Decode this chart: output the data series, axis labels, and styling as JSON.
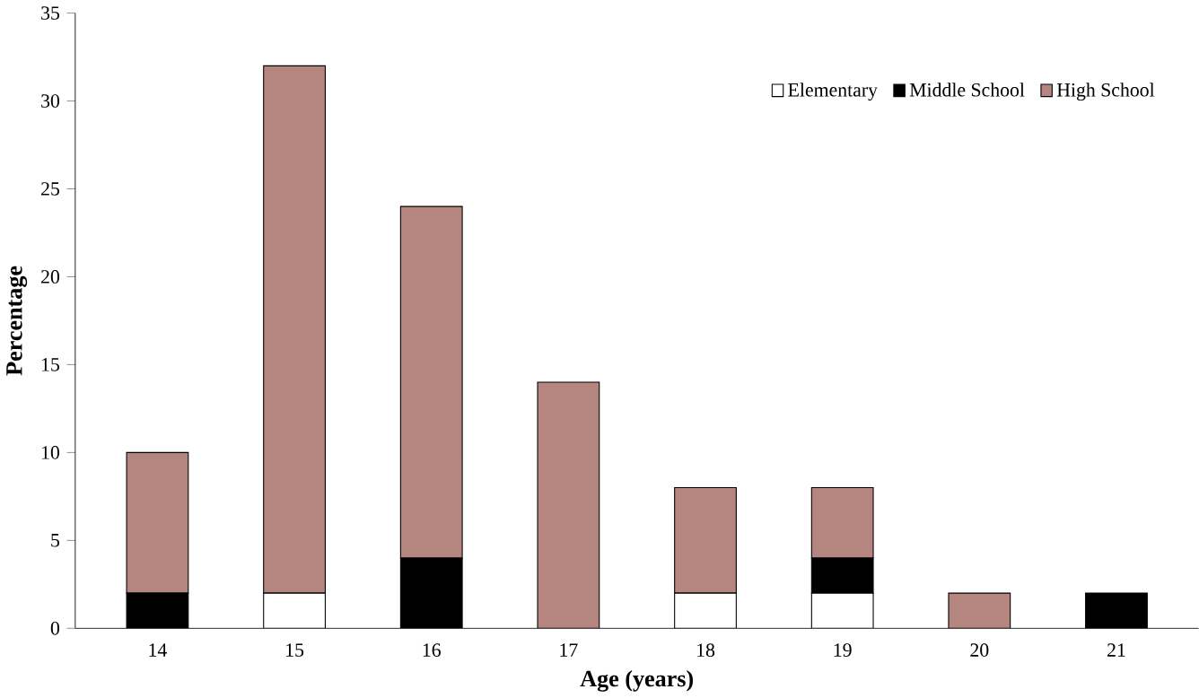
{
  "chart_data": {
    "type": "bar",
    "stacked": true,
    "xlabel": "Age (years)",
    "ylabel": "Percentage",
    "categories": [
      "14",
      "15",
      "16",
      "17",
      "18",
      "19",
      "20",
      "21"
    ],
    "series": [
      {
        "name": "Elementary",
        "color": "#ffffff",
        "values": [
          0,
          2,
          0,
          0,
          2,
          2,
          0,
          0
        ]
      },
      {
        "name": "Middle School",
        "color": "#000000",
        "values": [
          2,
          0,
          4,
          0,
          0,
          2,
          0,
          2
        ]
      },
      {
        "name": "High School",
        "color": "#b5867f",
        "values": [
          8,
          30,
          20,
          14,
          6,
          4,
          2,
          0
        ]
      }
    ],
    "ylim": [
      0,
      35
    ],
    "yticks": [
      0,
      5,
      10,
      15,
      20,
      25,
      30,
      35
    ],
    "grid": false,
    "legend": "top right"
  }
}
